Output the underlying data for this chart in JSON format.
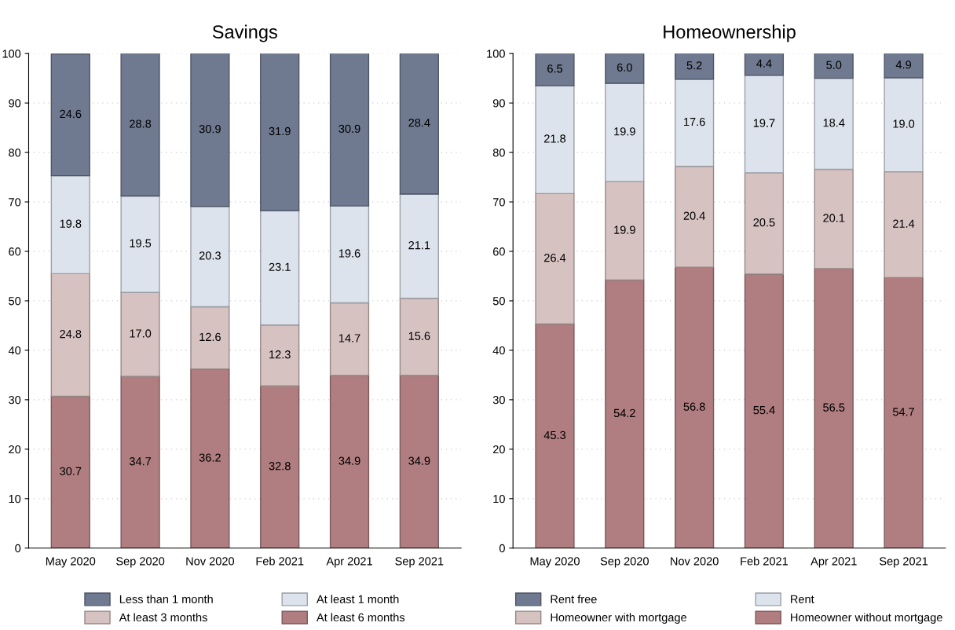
{
  "chart_data": [
    {
      "type": "bar",
      "title": "Savings",
      "stacked": true,
      "grid": "y",
      "legend": "bottom",
      "categories": [
        "May 2020",
        "Sep 2020",
        "Nov 2020",
        "Feb 2021",
        "Apr 2021",
        "Sep 2021"
      ],
      "ylim": [
        0,
        100
      ],
      "yticks": [
        0,
        10,
        20,
        30,
        40,
        50,
        60,
        70,
        80,
        90,
        100
      ],
      "series": [
        {
          "name": "At least 6 months",
          "color": "#b07e80",
          "values": [
            30.7,
            34.7,
            36.2,
            32.8,
            34.9,
            34.9
          ],
          "value_labels": [
            "30.7",
            "34.7",
            "36.2",
            "32.8",
            "34.9",
            "34.9"
          ]
        },
        {
          "name": "At least 3 months",
          "color": "#d6c2c1",
          "values": [
            24.8,
            17.0,
            12.6,
            12.3,
            14.7,
            15.6
          ],
          "value_labels": [
            "24.8",
            "17.0",
            "12.6",
            "12.3",
            "14.7",
            "15.6"
          ]
        },
        {
          "name": "At least 1 month",
          "color": "#dde3ec",
          "values": [
            19.8,
            19.5,
            20.3,
            23.1,
            19.6,
            21.1
          ],
          "value_labels": [
            "19.8",
            "19.5",
            "20.3",
            "23.1",
            "19.6",
            "21.1"
          ]
        },
        {
          "name": "Less than 1 month",
          "color": "#6f7a90",
          "values": [
            24.6,
            28.8,
            30.9,
            31.9,
            30.9,
            28.4
          ],
          "value_labels": [
            "24.6",
            "28.8",
            "30.9",
            "31.9",
            "30.9",
            "28.4"
          ]
        }
      ]
    },
    {
      "type": "bar",
      "title": "Homeownership",
      "stacked": true,
      "grid": "y",
      "legend": "bottom",
      "categories": [
        "May 2020",
        "Sep 2020",
        "Nov 2020",
        "Feb 2021",
        "Apr 2021",
        "Sep 2021"
      ],
      "ylim": [
        0,
        100
      ],
      "yticks": [
        0,
        10,
        20,
        30,
        40,
        50,
        60,
        70,
        80,
        90,
        100
      ],
      "series": [
        {
          "name": "Homeowner without mortgage",
          "color": "#b07e80",
          "values": [
            45.3,
            54.2,
            56.8,
            55.4,
            56.5,
            54.7
          ],
          "value_labels": [
            "45.3",
            "54.2",
            "56.8",
            "55.4",
            "56.5",
            "54.7"
          ]
        },
        {
          "name": "Homeowner with mortgage",
          "color": "#d6c2c1",
          "values": [
            26.4,
            19.9,
            20.4,
            20.5,
            20.1,
            21.4
          ],
          "value_labels": [
            "26.4",
            "19.9",
            "20.4",
            "20.5",
            "20.1",
            "21.4"
          ]
        },
        {
          "name": "Rent",
          "color": "#dde3ec",
          "values": [
            21.8,
            19.9,
            17.6,
            19.7,
            18.4,
            19.0
          ],
          "value_labels": [
            "21.8",
            "19.9",
            "17.6",
            "19.7",
            "18.4",
            "19.0"
          ]
        },
        {
          "name": "Rent free",
          "color": "#6f7a90",
          "values": [
            6.5,
            6.0,
            5.2,
            4.4,
            5.0,
            4.9
          ],
          "value_labels": [
            "6.5",
            "6.0",
            "5.2",
            "4.4",
            "5.0",
            "4.9"
          ]
        }
      ]
    }
  ]
}
